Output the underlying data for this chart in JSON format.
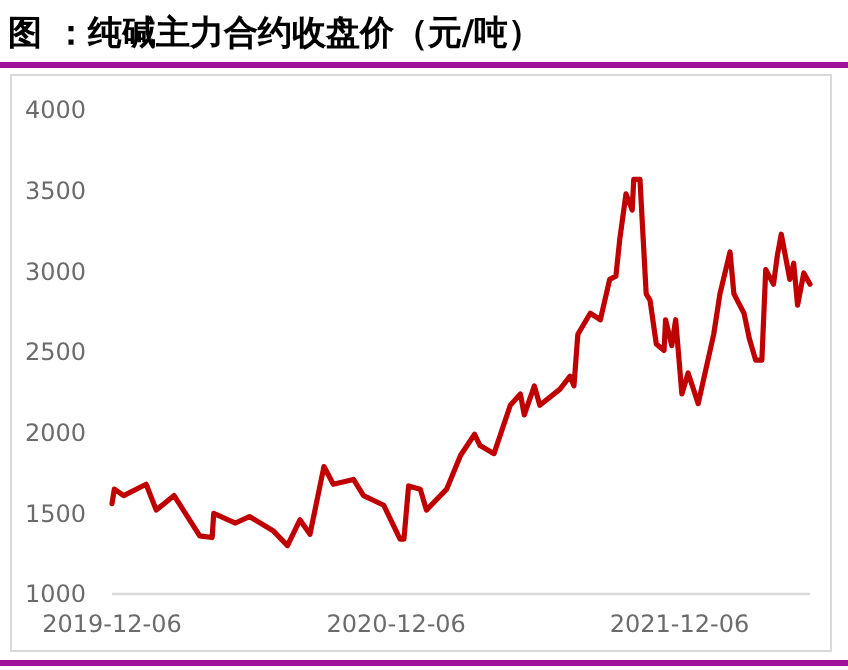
{
  "chart_data": {
    "type": "line",
    "title": "图  ：纯碱主力合约收盘价（元/吨）",
    "x": [
      "2019-12-06",
      "2019-12-09",
      "2019-12-21",
      "2020-01-19",
      "2020-02-01",
      "2020-02-24",
      "2020-03-28",
      "2020-04-13",
      "2020-04-15",
      "2020-05-13",
      "2020-05-31",
      "2020-07-01",
      "2020-07-19",
      "2020-08-04",
      "2020-08-17",
      "2020-09-04",
      "2020-09-16",
      "2020-10-12",
      "2020-10-25",
      "2020-11-20",
      "2020-12-11",
      "2020-12-16",
      "2020-12-22",
      "2021-01-06",
      "2021-01-14",
      "2021-02-09",
      "2021-02-27",
      "2021-03-17",
      "2021-03-24",
      "2021-04-11",
      "2021-05-02",
      "2021-05-15",
      "2021-05-20",
      "2021-06-02",
      "2021-06-09",
      "2021-07-05",
      "2021-07-18",
      "2021-07-23",
      "2021-07-28",
      "2021-08-13",
      "2021-08-26",
      "2021-09-07",
      "2021-09-15",
      "2021-09-20",
      "2021-09-28",
      "2021-10-06",
      "2021-10-08",
      "2021-10-16",
      "2021-10-24",
      "2021-10-29",
      "2021-11-06",
      "2021-11-16",
      "2021-11-18",
      "2021-11-26",
      "2021-12-01",
      "2021-12-09",
      "2021-12-17",
      "2021-12-30",
      "2022-01-19",
      "2022-01-27",
      "2022-02-09",
      "2022-02-14",
      "2022-02-27",
      "2022-03-06",
      "2022-03-14",
      "2022-03-22",
      "2022-03-27",
      "2022-04-06",
      "2022-04-11",
      "2022-04-16",
      "2022-04-27",
      "2022-05-02",
      "2022-05-07",
      "2022-05-15",
      "2022-05-23"
    ],
    "series": [
      {
        "color": "#c00000",
        "values": [
          1560,
          1650,
          1610,
          1680,
          1520,
          1610,
          1360,
          1350,
          1500,
          1440,
          1480,
          1390,
          1300,
          1460,
          1370,
          1790,
          1680,
          1710,
          1610,
          1550,
          1340,
          1340,
          1670,
          1650,
          1520,
          1650,
          1860,
          1990,
          1920,
          1870,
          2170,
          2240,
          2110,
          2290,
          2170,
          2270,
          2350,
          2290,
          2610,
          2740,
          2700,
          2950,
          2970,
          3200,
          3480,
          3380,
          3570,
          3570,
          2860,
          2820,
          2550,
          2510,
          2700,
          2540,
          2700,
          2240,
          2370,
          2180,
          2610,
          2860,
          3120,
          2860,
          2740,
          2580,
          2450,
          2450,
          3010,
          2920,
          3100,
          3230,
          2950,
          3050,
          2790,
          2990,
          2920
        ]
      }
    ],
    "xlim": [
      "2019-12-06",
      "2022-05-23"
    ],
    "xticks": [
      {
        "value": "2019-12-06",
        "label": "2019-12-06"
      },
      {
        "value": "2020-12-06",
        "label": "2020-12-06"
      },
      {
        "value": "2021-12-06",
        "label": "2021-12-06"
      }
    ],
    "ylim": [
      1000,
      4000
    ],
    "yticks": [
      1000,
      1500,
      2000,
      2500,
      3000,
      3500,
      4000
    ],
    "marker": "none",
    "line_style": "solid"
  }
}
